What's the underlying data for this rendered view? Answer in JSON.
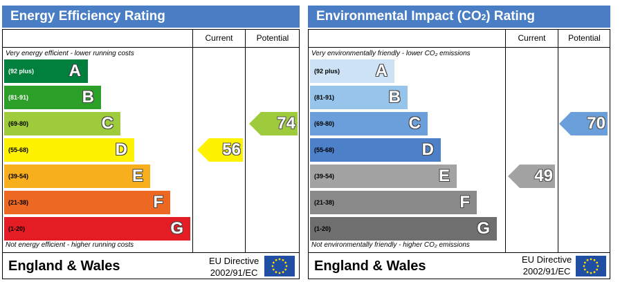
{
  "colors": {
    "header_bg": "#4a7ec4",
    "ee_bands": [
      "#007f3d",
      "#2c9f29",
      "#9dcb3c",
      "#fff200",
      "#f7af1d",
      "#ed6823",
      "#e31d23"
    ],
    "ei_bands": [
      "#cde3f5",
      "#96c4eb",
      "#6b9fdb",
      "#4c80c8",
      "#a3a3a3",
      "#8a8a8a",
      "#6f6f6f"
    ],
    "ee_current": "#fff200",
    "ee_potential": "#9dcb3c",
    "ei_current": "#a3a3a3",
    "ei_potential": "#6b9fdb",
    "eu_flag_bg": "#1f4ea3",
    "eu_flag_star": "#ffdd00"
  },
  "icons": {
    "eu_flag": "eu-flag-icon"
  },
  "chart_data": [
    {
      "type": "bar",
      "title": "Energy Efficiency Rating",
      "columns": [
        "Current",
        "Potential"
      ],
      "top_caption": "Very energy efficient - lower running costs",
      "bottom_caption": "Not energy efficient - higher running costs",
      "bands": [
        {
          "range": "(92 plus)",
          "letter": "A"
        },
        {
          "range": "(81-91)",
          "letter": "B"
        },
        {
          "range": "(69-80)",
          "letter": "C"
        },
        {
          "range": "(55-68)",
          "letter": "D"
        },
        {
          "range": "(39-54)",
          "letter": "E"
        },
        {
          "range": "(21-38)",
          "letter": "F"
        },
        {
          "range": "(1-20)",
          "letter": "G"
        }
      ],
      "current": {
        "value": 56,
        "band": "D"
      },
      "potential": {
        "value": 74,
        "band": "C"
      },
      "footer": {
        "region": "England & Wales",
        "directive_line1": "EU Directive",
        "directive_line2": "2002/91/EC"
      }
    },
    {
      "type": "bar",
      "title": "Environmental Impact (CO",
      "title_sub": "2",
      "title_tail": ") Rating",
      "columns": [
        "Current",
        "Potential"
      ],
      "top_caption": "Very environmentally friendly - lower CO₂ emissions",
      "bottom_caption": "Not environmentally friendly - higher CO₂ emissions",
      "bands": [
        {
          "range": "(92 plus)",
          "letter": "A"
        },
        {
          "range": "(81-91)",
          "letter": "B"
        },
        {
          "range": "(69-80)",
          "letter": "C"
        },
        {
          "range": "(55-68)",
          "letter": "D"
        },
        {
          "range": "(39-54)",
          "letter": "E"
        },
        {
          "range": "(21-38)",
          "letter": "F"
        },
        {
          "range": "(1-20)",
          "letter": "G"
        }
      ],
      "current": {
        "value": 49,
        "band": "E"
      },
      "potential": {
        "value": 70,
        "band": "C"
      },
      "footer": {
        "region": "England & Wales",
        "directive_line1": "EU Directive",
        "directive_line2": "2002/91/EC"
      }
    }
  ]
}
